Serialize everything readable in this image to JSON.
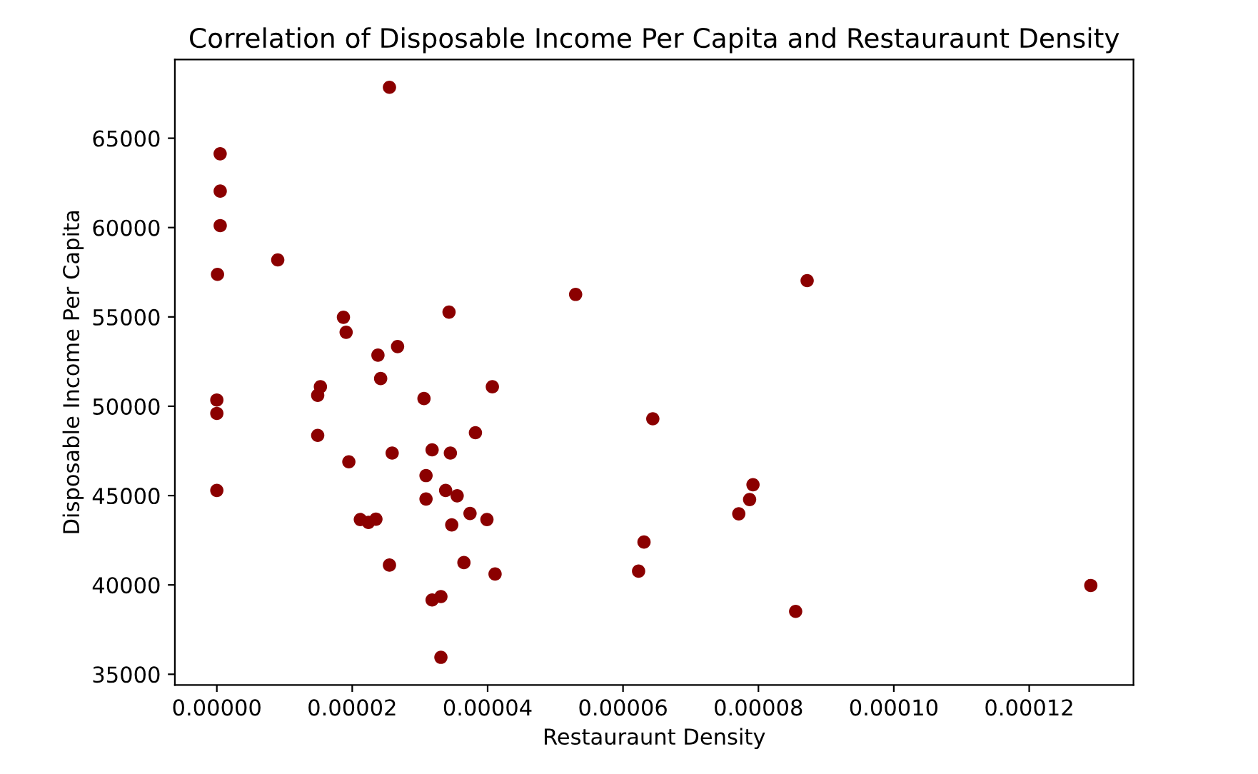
{
  "chart_data": {
    "type": "scatter",
    "title": "Correlation of Disposable Income Per Capita and Restauraunt Density",
    "xlabel": "Restauraunt Density",
    "ylabel": "Disposable Income Per Capita",
    "x": [
      2.55e-05,
      4.9e-07,
      5e-07,
      5e-07,
      1e-07,
      9e-06,
      5.3e-05,
      1.87e-05,
      1.91e-05,
      3.43e-05,
      2.67e-05,
      2.38e-05,
      2.42e-05,
      4.07e-05,
      0,
      0,
      0,
      1.53e-05,
      1.49e-05,
      3.06e-05,
      1.49e-05,
      3.82e-05,
      1.95e-05,
      2.59e-05,
      3.18e-05,
      3.45e-05,
      3.09e-05,
      3.38e-05,
      3.55e-05,
      3.09e-05,
      3.74e-05,
      3.99e-05,
      3.47e-05,
      2.12e-05,
      2.24e-05,
      2.35e-05,
      2.55e-05,
      3.65e-05,
      4.11e-05,
      3.18e-05,
      3.31e-05,
      3.31e-05,
      8.72e-05,
      6.44e-05,
      7.92e-05,
      7.87e-05,
      7.71e-05,
      6.31e-05,
      6.23e-05,
      8.55e-05,
      0.0001291
    ],
    "series": [
      {
        "color": "#8b0000",
        "values": [
          67850,
          64130,
          62040,
          60110,
          57380,
          58190,
          56260,
          54980,
          54140,
          55270,
          53340,
          52860,
          51550,
          51090,
          50350,
          49600,
          45290,
          51090,
          50610,
          50430,
          48370,
          48520,
          46890,
          47380,
          47560,
          47380,
          46120,
          45290,
          44990,
          44810,
          44000,
          43660,
          43360,
          43660,
          43500,
          43680,
          41110,
          41250,
          40610,
          39160,
          39350,
          35950,
          57030,
          49300,
          45610,
          44780,
          43980,
          42400,
          40770,
          38520,
          39970
        ]
      }
    ],
    "xlim": [
      -6.2e-06,
      0.0001354
    ],
    "ylim": [
      34400,
      69400
    ],
    "xticks": [
      {
        "value": 0,
        "label": "0.00000"
      },
      {
        "value": 2e-05,
        "label": "0.00002"
      },
      {
        "value": 4e-05,
        "label": "0.00004"
      },
      {
        "value": 6e-05,
        "label": "0.00006"
      },
      {
        "value": 8e-05,
        "label": "0.00008"
      },
      {
        "value": 0.0001,
        "label": "0.00010"
      },
      {
        "value": 0.00012,
        "label": "0.00012"
      }
    ],
    "yticks": [
      35000,
      40000,
      45000,
      50000,
      55000,
      60000,
      65000
    ],
    "grid": false,
    "marker": "circle"
  }
}
